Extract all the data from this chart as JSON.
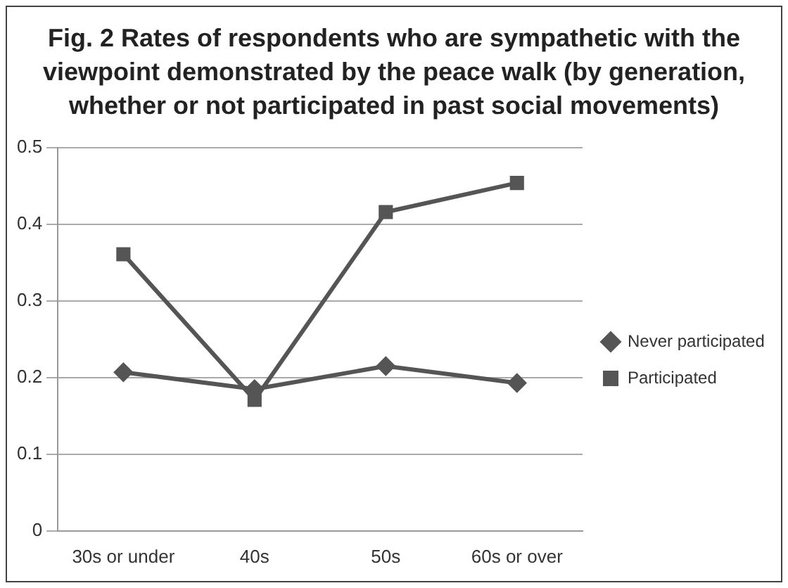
{
  "chart_data": {
    "type": "line",
    "title": "Fig. 2 Rates of respondents who are sympathetic with the viewpoint demonstrated by the peace walk (by generation, whether or not participated in past social movements)",
    "categories": [
      "30s or under",
      "40s",
      "50s",
      "60s or over"
    ],
    "series": [
      {
        "name": "Never participated",
        "color": "#555555",
        "marker": "diamond",
        "values": [
          0.207,
          0.185,
          0.215,
          0.193
        ]
      },
      {
        "name": "Participated",
        "color": "#555555",
        "marker": "square",
        "values": [
          0.361,
          0.171,
          0.416,
          0.454
        ]
      }
    ],
    "ylim": [
      0,
      0.5
    ],
    "yticks": [
      0,
      0.1,
      0.2,
      0.3,
      0.4,
      0.5
    ],
    "grid": "y",
    "legend": "right"
  }
}
